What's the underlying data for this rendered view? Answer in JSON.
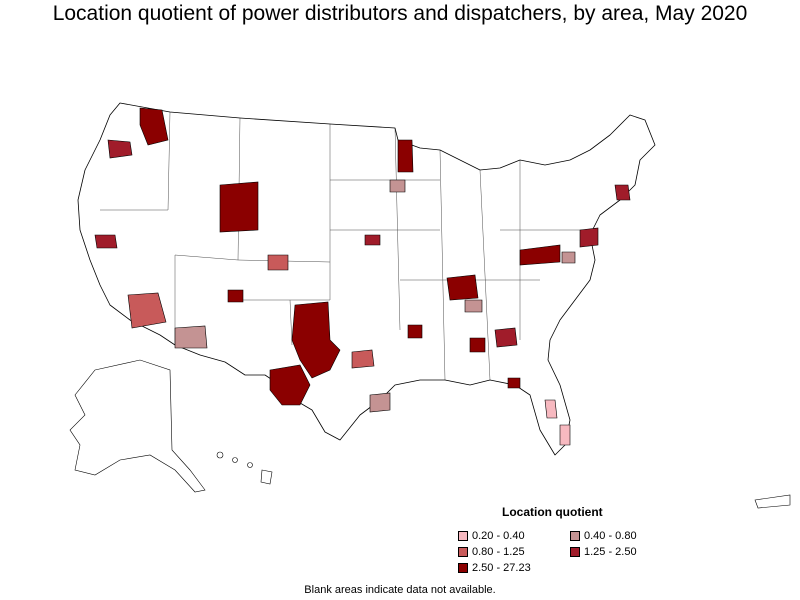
{
  "title": "Location quotient of power distributors and dispatchers, by area, May 2020",
  "legend": {
    "title": "Location quotient",
    "items": [
      {
        "label": "0.20 - 0.40",
        "color": "#f7b9c0"
      },
      {
        "label": "0.40 - 0.80",
        "color": "#c49393"
      },
      {
        "label": "0.80 - 1.25",
        "color": "#c85a5a"
      },
      {
        "label": "1.25 - 2.50",
        "color": "#a01c2a"
      },
      {
        "label": "2.50 - 27.23",
        "color": "#8b0000"
      }
    ]
  },
  "footnote": "Blank areas indicate data not available.",
  "map_colors": {
    "blank": "#ffffff",
    "border": "#000000"
  }
}
